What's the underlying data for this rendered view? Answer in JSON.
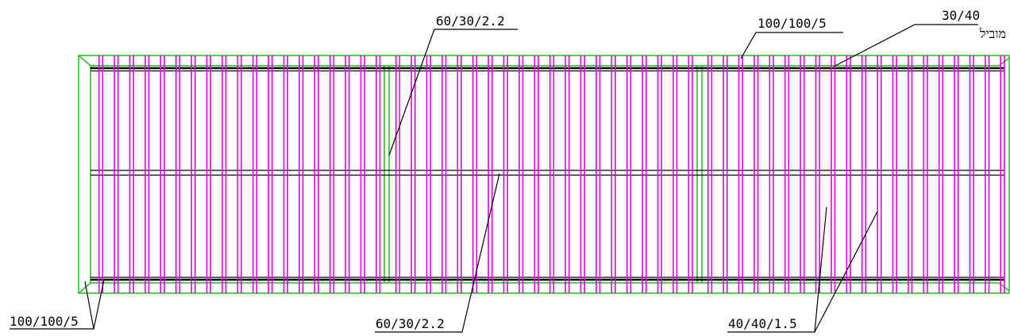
{
  "colors": {
    "background": "#ffffff",
    "frame": "#1fbf1f",
    "slat": "#e000e0",
    "rail": "#000000",
    "leader": "#000000"
  },
  "labels": {
    "top_center": "60/30/2.2",
    "top_right": "100/100/5",
    "far_right_line1": "30/40",
    "far_right_line2": "מוביל",
    "bottom_left": "100/100/5",
    "bottom_center": "60/30/2.2",
    "bottom_right": "40/40/1.5"
  }
}
